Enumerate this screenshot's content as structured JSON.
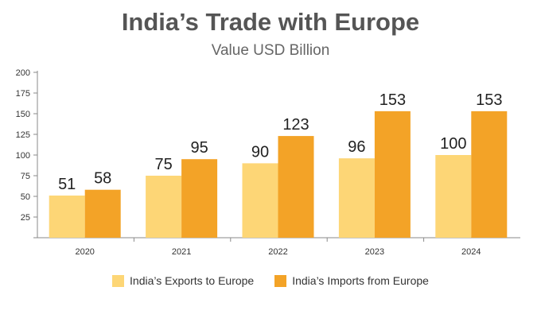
{
  "chart_data": {
    "type": "bar",
    "title": "India’s Trade with Europe",
    "subtitle": "Value USD Billion",
    "categories": [
      "2020",
      "2021",
      "2022",
      "2023",
      "2024"
    ],
    "series": [
      {
        "name": "India’s Exports to Europe",
        "values": [
          51,
          75,
          90,
          96,
          100
        ],
        "color": "#FDD676"
      },
      {
        "name": "India’s Imports from Europe",
        "values": [
          58,
          95,
          123,
          153,
          153
        ],
        "color": "#F3A327"
      }
    ],
    "ylim": [
      0,
      200
    ],
    "yticks": [
      25,
      50,
      75,
      100,
      125,
      150,
      175,
      200
    ],
    "xlabel": "",
    "ylabel": "",
    "grid": false,
    "legend_position": "bottom"
  }
}
